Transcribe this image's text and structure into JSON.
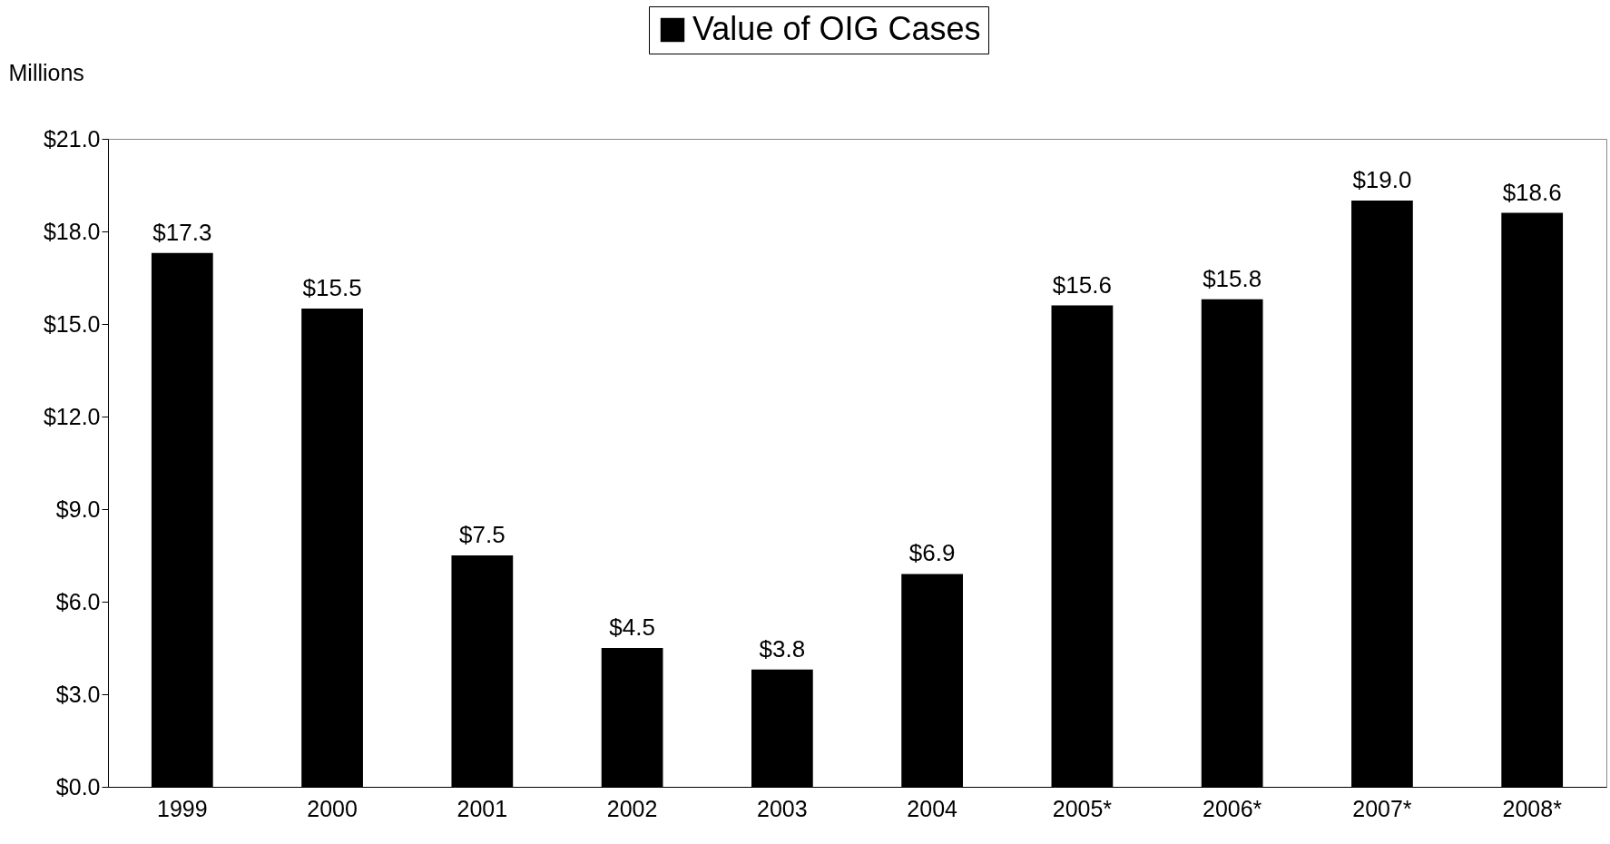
{
  "chart_data": {
    "type": "bar",
    "ylabel": "Millions",
    "categories": [
      "1999",
      "2000",
      "2001",
      "2002",
      "2003",
      "2004",
      "2005*",
      "2006*",
      "2007*",
      "2008*"
    ],
    "series": [
      {
        "name": "Value of OIG Cases",
        "color": "#000000",
        "values": [
          17.3,
          15.5,
          7.5,
          4.5,
          3.8,
          6.9,
          15.6,
          15.8,
          19.0,
          18.6
        ],
        "value_labels": [
          "$17.3",
          "$15.5",
          "$7.5",
          "$4.5",
          "$3.8",
          "$6.9",
          "$15.6",
          "$15.8",
          "$19.0",
          "$18.6"
        ]
      }
    ],
    "ylim": [
      0,
      21
    ],
    "yticks": [
      {
        "value": 0,
        "label": "$0.0"
      },
      {
        "value": 3,
        "label": "$3.0"
      },
      {
        "value": 6,
        "label": "$6.0"
      },
      {
        "value": 9,
        "label": "$9.0"
      },
      {
        "value": 12,
        "label": "$12.0"
      },
      {
        "value": 15,
        "label": "$15.0"
      },
      {
        "value": 18,
        "label": "$18.0"
      },
      {
        "value": 21,
        "label": "$21.0"
      }
    ],
    "grid": false,
    "legend": "top"
  }
}
